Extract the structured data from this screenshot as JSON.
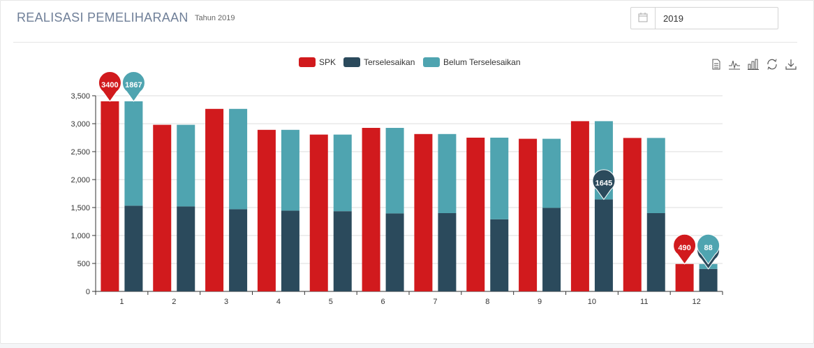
{
  "header": {
    "title": "REALISASI PEMELIHARAAN",
    "subtitle": "Tahun 2019"
  },
  "year_picker": {
    "value": "2019",
    "icon": "calendar-icon"
  },
  "toolbox": [
    "data-view-icon",
    "line-chart-icon",
    "bar-chart-icon",
    "refresh-icon",
    "download-icon"
  ],
  "colors": {
    "spk": "#d11a1d",
    "terselesaikan": "#2b4a5c",
    "belum": "#4fa4b0",
    "axis": "#333333",
    "grid": "#dddddd"
  },
  "chart_data": {
    "type": "bar",
    "categories": [
      "1",
      "2",
      "3",
      "4",
      "5",
      "6",
      "7",
      "8",
      "9",
      "10",
      "11",
      "12"
    ],
    "series": [
      {
        "name": "SPK",
        "values": [
          3400,
          2980,
          3265,
          2890,
          2805,
          2925,
          2815,
          2750,
          2730,
          3045,
          2745,
          490
        ]
      },
      {
        "name": "Terselesaikan",
        "stack": "total",
        "values": [
          1533,
          1520,
          1470,
          1445,
          1435,
          1395,
          1400,
          1290,
          1495,
          1645,
          1400,
          402
        ]
      },
      {
        "name": "Belum Terselesaikan",
        "stack": "total",
        "values": [
          1867,
          1460,
          1795,
          1445,
          1370,
          1530,
          1415,
          1460,
          1235,
          1400,
          1345,
          88
        ]
      }
    ],
    "y_ticks": [
      "0",
      "500",
      "1,000",
      "1,500",
      "2,000",
      "2,500",
      "3,000",
      "3,500"
    ],
    "ylim": [
      0,
      3500
    ],
    "grid": true,
    "legend_position": "top-center",
    "markers": [
      {
        "series": "SPK",
        "category": "1",
        "label": "3400"
      },
      {
        "series": "Belum Terselesaikan",
        "category": "1",
        "label": "1867"
      },
      {
        "series": "Terselesaikan",
        "category": "10",
        "label": "1645"
      },
      {
        "series": "SPK",
        "category": "12",
        "label": "490"
      },
      {
        "series": "Terselesaikan",
        "category": "12",
        "label": "402"
      },
      {
        "series": "Belum Terselesaikan",
        "category": "12",
        "label": "88"
      }
    ]
  }
}
